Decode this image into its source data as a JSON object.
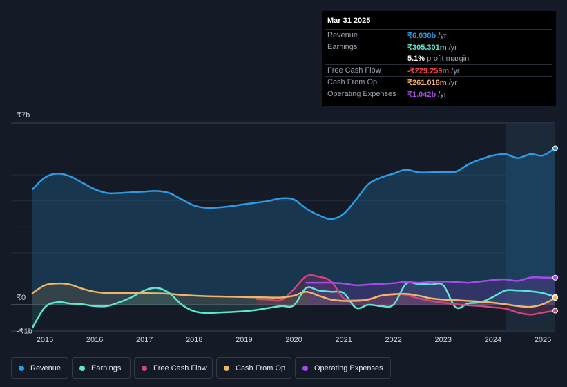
{
  "tooltip": {
    "date": "Mar 31 2025",
    "rows": [
      {
        "label": "Revenue",
        "value": "₹6.030b",
        "unit": " /yr",
        "color": "#2e9be8"
      },
      {
        "label": "Earnings",
        "value": "₹305.301m",
        "unit": " /yr",
        "color": "#5ee6d3"
      },
      {
        "label": "",
        "value": "5.1%",
        "unit": " profit margin",
        "color": "#ffffff"
      },
      {
        "label": "Free Cash Flow",
        "value": "-₹229.259m",
        "unit": " /yr",
        "color": "#f0494e"
      },
      {
        "label": "Cash From Op",
        "value": "₹261.016m",
        "unit": " /yr",
        "color": "#f0b46a"
      },
      {
        "label": "Operating Expenses",
        "value": "₹1.042b",
        "unit": " /yr",
        "color": "#a54ce8"
      }
    ]
  },
  "legend": [
    {
      "label": "Revenue",
      "color": "#2e9be8"
    },
    {
      "label": "Earnings",
      "color": "#5ee6d3"
    },
    {
      "label": "Free Cash Flow",
      "color": "#d0457c"
    },
    {
      "label": "Cash From Op",
      "color": "#f0b46a"
    },
    {
      "label": "Operating Expenses",
      "color": "#a54ce8"
    }
  ],
  "chart_data": {
    "type": "line",
    "title": "",
    "xlabel": "",
    "ylabel": "",
    "y_tick_labels": [
      {
        "label": "₹7b",
        "value": 7
      },
      {
        "label": "₹0",
        "value": 0
      },
      {
        "label": "-₹1b",
        "value": -1
      }
    ],
    "ylim": [
      -1,
      7
    ],
    "xlim": [
      2014.75,
      2025.25
    ],
    "x_tick_labels": [
      "2015",
      "2016",
      "2017",
      "2018",
      "2019",
      "2020",
      "2021",
      "2022",
      "2023",
      "2024",
      "2025"
    ],
    "x_ticks": [
      2015,
      2016,
      2017,
      2018,
      2019,
      2020,
      2021,
      2022,
      2023,
      2024,
      2025
    ],
    "highlight_start": 2024.25,
    "series": [
      {
        "name": "Revenue",
        "color": "#2e9be8",
        "fill": true,
        "points": [
          [
            2014.75,
            4.45
          ],
          [
            2015.0,
            4.9
          ],
          [
            2015.25,
            5.05
          ],
          [
            2015.5,
            4.95
          ],
          [
            2015.75,
            4.7
          ],
          [
            2016.0,
            4.45
          ],
          [
            2016.25,
            4.3
          ],
          [
            2016.5,
            4.3
          ],
          [
            2016.75,
            4.33
          ],
          [
            2017.0,
            4.36
          ],
          [
            2017.25,
            4.38
          ],
          [
            2017.5,
            4.3
          ],
          [
            2017.75,
            4.05
          ],
          [
            2018.0,
            3.82
          ],
          [
            2018.25,
            3.73
          ],
          [
            2018.5,
            3.75
          ],
          [
            2018.75,
            3.8
          ],
          [
            2019.0,
            3.87
          ],
          [
            2019.25,
            3.93
          ],
          [
            2019.5,
            4.0
          ],
          [
            2019.75,
            4.1
          ],
          [
            2020.0,
            4.05
          ],
          [
            2020.25,
            3.7
          ],
          [
            2020.5,
            3.45
          ],
          [
            2020.75,
            3.3
          ],
          [
            2021.0,
            3.5
          ],
          [
            2021.25,
            4.05
          ],
          [
            2021.5,
            4.65
          ],
          [
            2021.75,
            4.9
          ],
          [
            2022.0,
            5.05
          ],
          [
            2022.25,
            5.2
          ],
          [
            2022.5,
            5.1
          ],
          [
            2022.75,
            5.1
          ],
          [
            2023.0,
            5.12
          ],
          [
            2023.25,
            5.12
          ],
          [
            2023.5,
            5.4
          ],
          [
            2023.75,
            5.6
          ],
          [
            2024.0,
            5.75
          ],
          [
            2024.25,
            5.8
          ],
          [
            2024.5,
            5.65
          ],
          [
            2024.75,
            5.8
          ],
          [
            2025.0,
            5.75
          ],
          [
            2025.25,
            6.03
          ]
        ]
      },
      {
        "name": "Earnings",
        "color": "#5ee6d3",
        "fill": true,
        "points": [
          [
            2014.75,
            -0.88
          ],
          [
            2015.0,
            -0.1
          ],
          [
            2015.25,
            0.1
          ],
          [
            2015.5,
            0.05
          ],
          [
            2015.75,
            0.02
          ],
          [
            2016.0,
            -0.05
          ],
          [
            2016.25,
            -0.05
          ],
          [
            2016.5,
            0.1
          ],
          [
            2016.75,
            0.3
          ],
          [
            2017.0,
            0.55
          ],
          [
            2017.25,
            0.65
          ],
          [
            2017.5,
            0.45
          ],
          [
            2017.75,
            0.0
          ],
          [
            2018.0,
            -0.25
          ],
          [
            2018.25,
            -0.32
          ],
          [
            2018.5,
            -0.3
          ],
          [
            2018.75,
            -0.28
          ],
          [
            2019.0,
            -0.25
          ],
          [
            2019.25,
            -0.2
          ],
          [
            2019.5,
            -0.12
          ],
          [
            2019.75,
            -0.05
          ],
          [
            2020.0,
            -0.02
          ],
          [
            2020.25,
            0.65
          ],
          [
            2020.5,
            0.55
          ],
          [
            2020.75,
            0.5
          ],
          [
            2021.0,
            0.45
          ],
          [
            2021.25,
            -0.12
          ],
          [
            2021.5,
            0.0
          ],
          [
            2021.75,
            -0.05
          ],
          [
            2022.0,
            0.0
          ],
          [
            2022.25,
            0.8
          ],
          [
            2022.5,
            0.8
          ],
          [
            2022.75,
            0.78
          ],
          [
            2023.0,
            0.75
          ],
          [
            2023.25,
            -0.1
          ],
          [
            2023.5,
            0.05
          ],
          [
            2023.75,
            0.1
          ],
          [
            2024.0,
            0.3
          ],
          [
            2024.25,
            0.55
          ],
          [
            2024.5,
            0.55
          ],
          [
            2024.75,
            0.52
          ],
          [
            2025.0,
            0.45
          ],
          [
            2025.25,
            0.305
          ]
        ]
      },
      {
        "name": "Free Cash Flow",
        "color": "#d0457c",
        "fill": true,
        "points": [
          [
            2019.25,
            0.22
          ],
          [
            2019.5,
            0.2
          ],
          [
            2019.75,
            0.18
          ],
          [
            2020.0,
            0.6
          ],
          [
            2020.25,
            1.1
          ],
          [
            2020.5,
            1.08
          ],
          [
            2020.75,
            0.9
          ],
          [
            2021.0,
            0.25
          ],
          [
            2021.25,
            0.18
          ],
          [
            2021.5,
            0.22
          ],
          [
            2021.75,
            0.35
          ],
          [
            2022.0,
            0.42
          ],
          [
            2022.25,
            0.38
          ],
          [
            2022.5,
            0.25
          ],
          [
            2022.75,
            0.15
          ],
          [
            2023.0,
            0.08
          ],
          [
            2023.25,
            0.02
          ],
          [
            2023.5,
            -0.02
          ],
          [
            2023.75,
            -0.05
          ],
          [
            2024.0,
            -0.1
          ],
          [
            2024.25,
            -0.15
          ],
          [
            2024.5,
            -0.3
          ],
          [
            2024.75,
            -0.38
          ],
          [
            2025.0,
            -0.3
          ],
          [
            2025.25,
            -0.229
          ]
        ]
      },
      {
        "name": "Cash From Op",
        "color": "#f0b46a",
        "fill": true,
        "points": [
          [
            2014.75,
            0.45
          ],
          [
            2015.0,
            0.75
          ],
          [
            2015.25,
            0.82
          ],
          [
            2015.5,
            0.78
          ],
          [
            2015.75,
            0.62
          ],
          [
            2016.0,
            0.5
          ],
          [
            2016.25,
            0.45
          ],
          [
            2016.5,
            0.45
          ],
          [
            2016.75,
            0.45
          ],
          [
            2017.0,
            0.45
          ],
          [
            2017.25,
            0.44
          ],
          [
            2017.5,
            0.42
          ],
          [
            2017.75,
            0.38
          ],
          [
            2018.0,
            0.35
          ],
          [
            2018.25,
            0.33
          ],
          [
            2018.5,
            0.32
          ],
          [
            2018.75,
            0.31
          ],
          [
            2019.0,
            0.3
          ],
          [
            2019.25,
            0.29
          ],
          [
            2019.5,
            0.28
          ],
          [
            2019.75,
            0.28
          ],
          [
            2020.0,
            0.35
          ],
          [
            2020.25,
            0.5
          ],
          [
            2020.5,
            0.35
          ],
          [
            2020.75,
            0.2
          ],
          [
            2021.0,
            0.15
          ],
          [
            2021.25,
            0.15
          ],
          [
            2021.5,
            0.2
          ],
          [
            2021.75,
            0.35
          ],
          [
            2022.0,
            0.4
          ],
          [
            2022.25,
            0.42
          ],
          [
            2022.5,
            0.35
          ],
          [
            2022.75,
            0.25
          ],
          [
            2023.0,
            0.2
          ],
          [
            2023.25,
            0.18
          ],
          [
            2023.5,
            0.15
          ],
          [
            2023.75,
            0.12
          ],
          [
            2024.0,
            0.08
          ],
          [
            2024.25,
            0.02
          ],
          [
            2024.5,
            -0.05
          ],
          [
            2024.75,
            -0.08
          ],
          [
            2025.0,
            0.02
          ],
          [
            2025.25,
            0.261
          ]
        ]
      },
      {
        "name": "Operating Expenses",
        "color": "#a54ce8",
        "fill": true,
        "points": [
          [
            2020.25,
            0.85
          ],
          [
            2020.5,
            0.85
          ],
          [
            2020.75,
            0.85
          ],
          [
            2021.0,
            0.82
          ],
          [
            2021.25,
            0.75
          ],
          [
            2021.5,
            0.78
          ],
          [
            2021.75,
            0.8
          ],
          [
            2022.0,
            0.83
          ],
          [
            2022.25,
            0.88
          ],
          [
            2022.5,
            0.85
          ],
          [
            2022.75,
            0.88
          ],
          [
            2023.0,
            0.9
          ],
          [
            2023.25,
            0.88
          ],
          [
            2023.5,
            0.85
          ],
          [
            2023.75,
            0.9
          ],
          [
            2024.0,
            0.95
          ],
          [
            2024.25,
            0.98
          ],
          [
            2024.5,
            0.92
          ],
          [
            2024.75,
            1.05
          ],
          [
            2025.0,
            1.05
          ],
          [
            2025.25,
            1.042
          ]
        ]
      }
    ]
  }
}
